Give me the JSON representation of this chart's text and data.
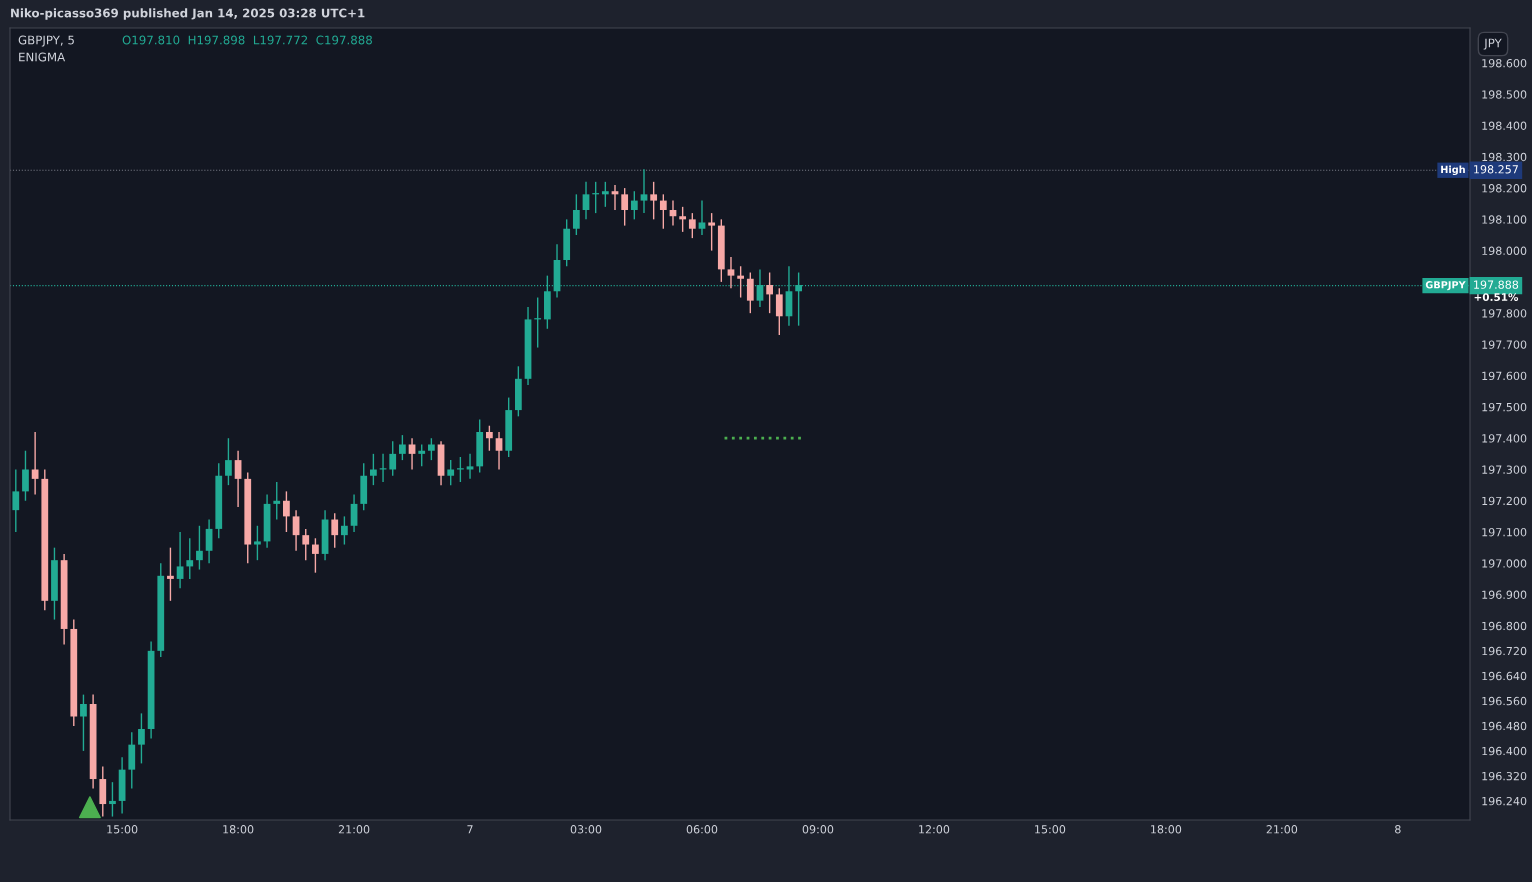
{
  "chart_data": {
    "type": "candlestick",
    "title": "GBPJPY, 5",
    "subtitle": "O197.810  H197.898  L197.772  C197.888",
    "ylabel": "JPY",
    "annotations": [
      "Niko-picasso369 published Jan 14, 2025 03:28 UTC+1",
      "ENIGMA",
      "+0.51%",
      "High",
      "GBPJPY"
    ],
    "x": [
      "2025-01-06T12:15",
      "2025-01-06T12:30",
      "2025-01-06T12:45",
      "2025-01-06T13:00",
      "2025-01-06T13:15",
      "2025-01-06T13:30",
      "2025-01-06T13:45",
      "2025-01-06T14:00",
      "2025-01-06T14:15",
      "2025-01-06T14:30",
      "2025-01-06T14:45",
      "2025-01-06T15:00",
      "2025-01-06T15:15",
      "2025-01-06T15:30",
      "2025-01-06T15:45",
      "2025-01-06T16:00",
      "2025-01-06T16:15",
      "2025-01-06T16:30",
      "2025-01-06T16:45",
      "2025-01-06T17:00",
      "2025-01-06T17:15",
      "2025-01-06T17:30",
      "2025-01-06T17:45",
      "2025-01-06T18:00",
      "2025-01-06T18:15",
      "2025-01-06T18:30",
      "2025-01-06T18:45",
      "2025-01-06T19:00",
      "2025-01-06T19:15",
      "2025-01-06T19:30",
      "2025-01-06T19:45",
      "2025-01-06T20:00",
      "2025-01-06T20:15",
      "2025-01-06T20:30",
      "2025-01-06T20:45",
      "2025-01-06T21:00",
      "2025-01-06T21:15",
      "2025-01-06T21:30",
      "2025-01-06T21:45",
      "2025-01-06T22:00",
      "2025-01-06T22:15",
      "2025-01-06T22:30",
      "2025-01-06T22:45",
      "2025-01-06T23:00",
      "2025-01-06T23:15",
      "2025-01-06T23:30",
      "2025-01-06T23:45",
      "2025-01-07T00:00",
      "2025-01-07T00:15",
      "2025-01-07T00:30",
      "2025-01-07T00:45",
      "2025-01-07T01:00",
      "2025-01-07T01:15",
      "2025-01-07T01:30",
      "2025-01-07T01:45",
      "2025-01-07T02:00",
      "2025-01-07T02:15",
      "2025-01-07T02:30",
      "2025-01-07T02:45",
      "2025-01-07T03:00",
      "2025-01-07T03:15",
      "2025-01-07T03:30",
      "2025-01-07T03:45",
      "2025-01-07T04:00",
      "2025-01-07T04:15",
      "2025-01-07T04:30",
      "2025-01-07T04:45",
      "2025-01-07T05:00",
      "2025-01-07T05:15",
      "2025-01-07T05:30",
      "2025-01-07T05:45",
      "2025-01-07T06:00",
      "2025-01-07T06:15",
      "2025-01-07T06:30",
      "2025-01-07T06:45",
      "2025-01-07T07:00",
      "2025-01-07T07:15",
      "2025-01-07T07:30",
      "2025-01-07T07:45",
      "2025-01-07T08:00",
      "2025-01-07T08:15",
      "2025-01-07T08:30"
    ],
    "ohlc": [
      [
        197.17,
        197.3,
        197.1,
        197.23
      ],
      [
        197.23,
        197.36,
        197.2,
        197.3
      ],
      [
        197.3,
        197.42,
        197.22,
        197.27
      ],
      [
        197.27,
        197.3,
        196.85,
        196.88
      ],
      [
        196.88,
        197.05,
        196.82,
        197.01
      ],
      [
        197.01,
        197.03,
        196.74,
        196.79
      ],
      [
        196.79,
        196.82,
        196.48,
        196.51
      ],
      [
        196.51,
        196.58,
        196.4,
        196.55
      ],
      [
        196.55,
        196.58,
        196.28,
        196.31
      ],
      [
        196.31,
        196.35,
        196.19,
        196.23
      ],
      [
        196.23,
        196.3,
        196.19,
        196.24
      ],
      [
        196.24,
        196.38,
        196.2,
        196.34
      ],
      [
        196.34,
        196.46,
        196.28,
        196.42
      ],
      [
        196.42,
        196.52,
        196.36,
        196.47
      ],
      [
        196.47,
        196.75,
        196.44,
        196.72
      ],
      [
        196.72,
        197.0,
        196.7,
        196.96
      ],
      [
        196.96,
        197.05,
        196.88,
        196.95
      ],
      [
        196.95,
        197.1,
        196.92,
        196.99
      ],
      [
        196.99,
        197.08,
        196.95,
        197.01
      ],
      [
        197.01,
        197.12,
        196.98,
        197.04
      ],
      [
        197.04,
        197.14,
        197.0,
        197.11
      ],
      [
        197.11,
        197.32,
        197.08,
        197.28
      ],
      [
        197.28,
        197.4,
        197.25,
        197.33
      ],
      [
        197.33,
        197.36,
        197.18,
        197.27
      ],
      [
        197.27,
        197.29,
        197.0,
        197.06
      ],
      [
        197.06,
        197.12,
        197.01,
        197.07
      ],
      [
        197.07,
        197.22,
        197.05,
        197.19
      ],
      [
        197.19,
        197.26,
        197.14,
        197.2
      ],
      [
        197.2,
        197.23,
        197.1,
        197.15
      ],
      [
        197.15,
        197.17,
        197.04,
        197.09
      ],
      [
        197.09,
        197.11,
        197.01,
        197.06
      ],
      [
        197.06,
        197.08,
        196.97,
        197.03
      ],
      [
        197.03,
        197.17,
        197.01,
        197.14
      ],
      [
        197.14,
        197.16,
        197.05,
        197.09
      ],
      [
        197.09,
        197.15,
        197.06,
        197.12
      ],
      [
        197.12,
        197.22,
        197.1,
        197.19
      ],
      [
        197.19,
        197.32,
        197.17,
        197.28
      ],
      [
        197.28,
        197.35,
        197.25,
        197.3
      ],
      [
        197.3,
        197.35,
        197.26,
        197.3
      ],
      [
        197.3,
        197.39,
        197.28,
        197.35
      ],
      [
        197.35,
        197.41,
        197.33,
        197.38
      ],
      [
        197.38,
        197.4,
        197.3,
        197.35
      ],
      [
        197.35,
        197.38,
        197.31,
        197.36
      ],
      [
        197.36,
        197.4,
        197.33,
        197.38
      ],
      [
        197.38,
        197.39,
        197.25,
        197.28
      ],
      [
        197.28,
        197.33,
        197.25,
        197.3
      ],
      [
        197.3,
        197.34,
        197.26,
        197.3
      ],
      [
        197.3,
        197.35,
        197.27,
        197.31
      ],
      [
        197.31,
        197.46,
        197.29,
        197.42
      ],
      [
        197.42,
        197.44,
        197.36,
        197.4
      ],
      [
        197.4,
        197.42,
        197.3,
        197.36
      ],
      [
        197.36,
        197.53,
        197.34,
        197.49
      ],
      [
        197.49,
        197.63,
        197.47,
        197.59
      ],
      [
        197.59,
        197.82,
        197.57,
        197.78
      ],
      [
        197.78,
        197.85,
        197.69,
        197.78
      ],
      [
        197.78,
        197.92,
        197.75,
        197.87
      ],
      [
        197.87,
        198.02,
        197.85,
        197.97
      ],
      [
        197.97,
        198.1,
        197.95,
        198.07
      ],
      [
        198.07,
        198.18,
        198.05,
        198.13
      ],
      [
        198.13,
        198.22,
        198.1,
        198.18
      ],
      [
        198.18,
        198.22,
        198.12,
        198.18
      ],
      [
        198.18,
        198.22,
        198.14,
        198.19
      ],
      [
        198.19,
        198.21,
        198.13,
        198.18
      ],
      [
        198.18,
        198.2,
        198.08,
        198.13
      ],
      [
        198.13,
        198.19,
        198.1,
        198.16
      ],
      [
        198.16,
        198.26,
        198.12,
        198.18
      ],
      [
        198.18,
        198.22,
        198.1,
        198.16
      ],
      [
        198.16,
        198.18,
        198.07,
        198.13
      ],
      [
        198.13,
        198.16,
        198.08,
        198.11
      ],
      [
        198.11,
        198.14,
        198.06,
        198.1
      ],
      [
        198.1,
        198.12,
        198.04,
        198.07
      ],
      [
        198.07,
        198.16,
        198.05,
        198.09
      ],
      [
        198.09,
        198.12,
        198.0,
        198.08
      ],
      [
        198.08,
        198.1,
        197.9,
        197.94
      ],
      [
        197.94,
        197.98,
        197.88,
        197.92
      ],
      [
        197.92,
        197.95,
        197.85,
        197.91
      ],
      [
        197.91,
        197.93,
        197.8,
        197.84
      ],
      [
        197.84,
        197.94,
        197.82,
        197.89
      ],
      [
        197.89,
        197.93,
        197.8,
        197.86
      ],
      [
        197.86,
        197.88,
        197.73,
        197.79
      ],
      [
        197.79,
        197.95,
        197.76,
        197.87
      ],
      [
        197.87,
        197.93,
        197.76,
        197.89
      ]
    ],
    "series": [
      {
        "type": "line",
        "color": "#4caf50",
        "line_style": "dotted",
        "x": [
          "2025-01-07T06:35",
          "2025-01-07T08:35"
        ],
        "values": [
          197.4,
          197.4
        ]
      },
      {
        "type": "scatter",
        "color": "#4caf50",
        "marker": "triangle",
        "x": [
          "2025-01-06T14:10"
        ],
        "values": [
          196.22
        ]
      }
    ],
    "ref_lines": [
      {
        "axis": "y",
        "value": 198.257,
        "label": "198.257",
        "color": "#787b86",
        "line_style": "dotted"
      },
      {
        "axis": "y",
        "value": 197.888,
        "label": "197.888",
        "color": "#22ab94",
        "line_style": "dotted"
      }
    ],
    "xlim": [
      "2025-01-06T12:06",
      "2025-01-08T01:52"
    ],
    "xticks": [
      {
        "value": "2025-01-06T15:00",
        "label": "15:00"
      },
      {
        "value": "2025-01-06T18:00",
        "label": "18:00"
      },
      {
        "value": "2025-01-06T21:00",
        "label": "21:00"
      },
      {
        "value": "2025-01-07T00:00",
        "label": "7"
      },
      {
        "value": "2025-01-07T03:00",
        "label": "03:00"
      },
      {
        "value": "2025-01-07T06:00",
        "label": "06:00"
      },
      {
        "value": "2025-01-07T09:00",
        "label": "09:00"
      },
      {
        "value": "2025-01-07T12:00",
        "label": "12:00"
      },
      {
        "value": "2025-01-07T15:00",
        "label": "15:00"
      },
      {
        "value": "2025-01-07T18:00",
        "label": "18:00"
      },
      {
        "value": "2025-01-07T21:00",
        "label": "21:00"
      },
      {
        "value": "2025-01-08T00:00",
        "label": "8"
      }
    ],
    "ylim": [
      196.179,
      198.712
    ],
    "yticks": [
      {
        "value": 198.6,
        "label": "198.600"
      },
      {
        "value": 198.5,
        "label": "198.500"
      },
      {
        "value": 198.4,
        "label": "198.400"
      },
      {
        "value": 198.3,
        "label": "198.300"
      },
      {
        "value": 198.2,
        "label": "198.200"
      },
      {
        "value": 198.1,
        "label": "198.100"
      },
      {
        "value": 198.0,
        "label": "198.000"
      },
      {
        "value": 197.8,
        "label": "197.800"
      },
      {
        "value": 197.7,
        "label": "197.700"
      },
      {
        "value": 197.6,
        "label": "197.600"
      },
      {
        "value": 197.5,
        "label": "197.500"
      },
      {
        "value": 197.4,
        "label": "197.400"
      },
      {
        "value": 197.3,
        "label": "197.300"
      },
      {
        "value": 197.2,
        "label": "197.200"
      },
      {
        "value": 197.1,
        "label": "197.100"
      },
      {
        "value": 197.0,
        "label": "197.000"
      },
      {
        "value": 196.9,
        "label": "196.900"
      },
      {
        "value": 196.8,
        "label": "196.800"
      },
      {
        "value": 196.72,
        "label": "196.720"
      },
      {
        "value": 196.64,
        "label": "196.640"
      },
      {
        "value": 196.56,
        "label": "196.560"
      },
      {
        "value": 196.48,
        "label": "196.480"
      },
      {
        "value": 196.4,
        "label": "196.400"
      },
      {
        "value": 196.32,
        "label": "196.320"
      },
      {
        "value": 196.24,
        "label": "196.240"
      }
    ],
    "grid": false
  }
}
